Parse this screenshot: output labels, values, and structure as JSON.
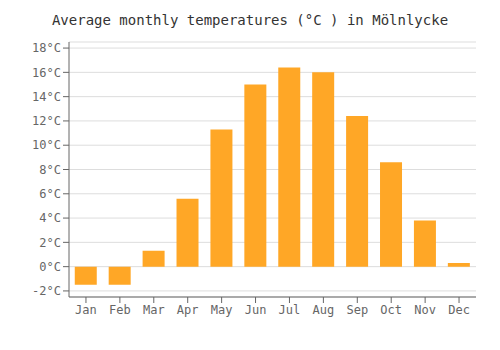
{
  "chart_data": {
    "type": "bar",
    "title": "Average monthly temperatures (°C ) in Mölnlycke",
    "categories": [
      "Jan",
      "Feb",
      "Mar",
      "Apr",
      "May",
      "Jun",
      "Jul",
      "Aug",
      "Sep",
      "Oct",
      "Nov",
      "Dec"
    ],
    "values": [
      -1.5,
      -1.5,
      1.3,
      5.6,
      11.3,
      15.0,
      16.4,
      16.0,
      12.4,
      8.6,
      3.8,
      0.3
    ],
    "color": "#FFA726",
    "ylim": [
      -2.5,
      18.5
    ],
    "yticks": [
      {
        "value": -2,
        "label": "-2°C"
      },
      {
        "value": 0,
        "label": "0°C"
      },
      {
        "value": 2,
        "label": "2°C"
      },
      {
        "value": 4,
        "label": "4°C"
      },
      {
        "value": 6,
        "label": "6°C"
      },
      {
        "value": 8,
        "label": "8°C"
      },
      {
        "value": 10,
        "label": "10°C"
      },
      {
        "value": 12,
        "label": "12°C"
      },
      {
        "value": 14,
        "label": "14°C"
      },
      {
        "value": 16,
        "label": "16°C"
      },
      {
        "value": 18,
        "label": "18°C"
      }
    ],
    "grid": true
  }
}
